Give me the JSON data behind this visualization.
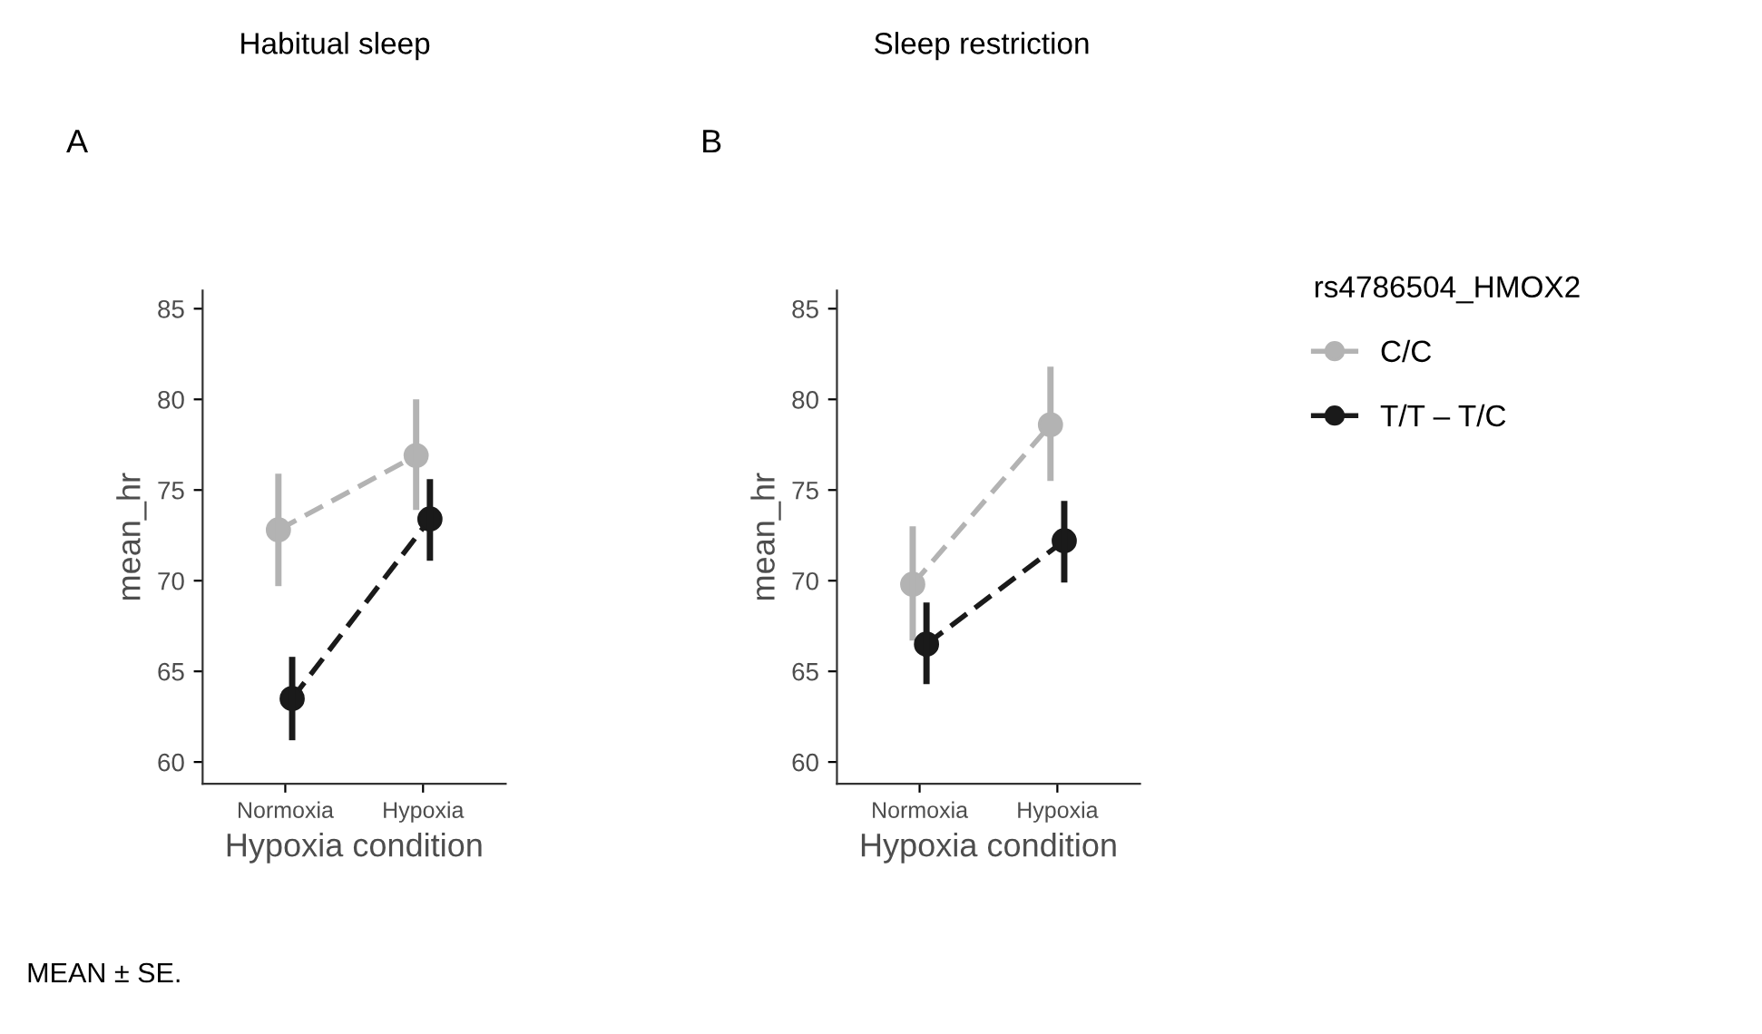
{
  "chart_data": [
    {
      "type": "line",
      "title": "Habitual sleep",
      "subtitle": "A",
      "xlabel": "Hypoxia condition",
      "ylabel": "mean_hr",
      "categories": [
        "Normoxia",
        "Hypoxia"
      ],
      "ylim": [
        58.8,
        86
      ],
      "yticks": [
        60,
        65,
        70,
        75,
        80,
        85
      ],
      "grid": false,
      "legend": false,
      "marker": "circle",
      "line_style": "dashed",
      "annotations": [
        "MEAN ± SE."
      ],
      "series": [
        {
          "color": "#b3b3b3",
          "values": [
            72.8,
            76.9
          ],
          "errors": [
            [
              69.7,
              75.9
            ],
            [
              73.9,
              80.0
            ]
          ]
        },
        {
          "color": "#1a1a1a",
          "values": [
            63.5,
            73.4
          ],
          "errors": [
            [
              61.2,
              65.8
            ],
            [
              71.1,
              75.6
            ]
          ]
        }
      ]
    },
    {
      "type": "line",
      "title": "Sleep restriction",
      "subtitle": "B",
      "xlabel": "Hypoxia condition",
      "ylabel": "mean_hr",
      "categories": [
        "Normoxia",
        "Hypoxia"
      ],
      "ylim": [
        58.8,
        86
      ],
      "yticks": [
        60,
        65,
        70,
        75,
        80,
        85
      ],
      "grid": false,
      "legend": "right",
      "legend_title": "rs4786504_HMOX2",
      "marker": "circle",
      "line_style": "dashed",
      "series": [
        {
          "name": "C/C",
          "color": "#b3b3b3",
          "values": [
            69.8,
            78.6
          ],
          "errors": [
            [
              66.7,
              73.0
            ],
            [
              75.5,
              81.8
            ]
          ]
        },
        {
          "name": "T/T – T/C",
          "color": "#1a1a1a",
          "values": [
            66.5,
            72.2
          ],
          "errors": [
            [
              64.3,
              68.8
            ],
            [
              69.9,
              74.4
            ]
          ]
        }
      ]
    }
  ]
}
